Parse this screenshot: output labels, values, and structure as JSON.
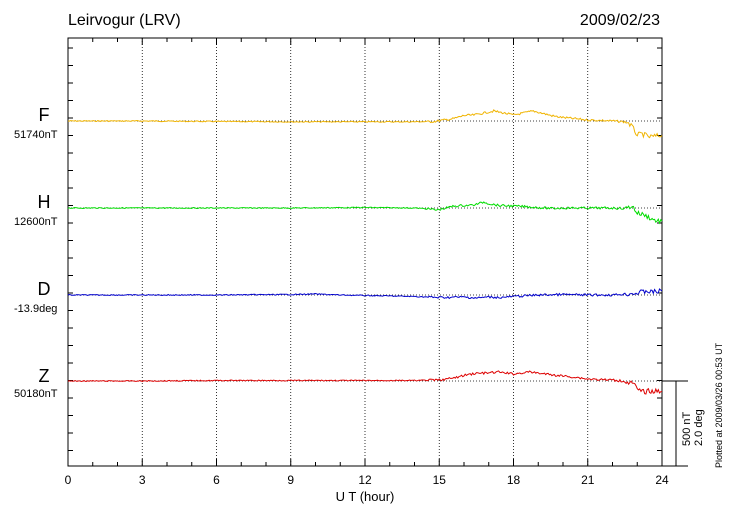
{
  "header": {
    "station": "Leirvogur (LRV)",
    "date": "2009/02/23"
  },
  "footer": {
    "plotted_at": "Plotted at 2009/03/26 00:53 UT"
  },
  "scale_bar": {
    "nt_label": "500 nT",
    "deg_label": "2.0 deg"
  },
  "chart_data": {
    "type": "line",
    "xlabel": "U T (hour)",
    "xlim": [
      0,
      24
    ],
    "xticks": [
      "0",
      "3",
      "6",
      "9",
      "12",
      "15",
      "18",
      "21",
      "24"
    ],
    "grid": true,
    "series": [
      {
        "name": "F",
        "baseline_label": "51740nT",
        "color": "#f0b400",
        "points": [
          [
            0,
            0
          ],
          [
            3,
            0
          ],
          [
            6,
            -5
          ],
          [
            9,
            -8
          ],
          [
            12,
            -8
          ],
          [
            14,
            -8
          ],
          [
            14.8,
            -5
          ],
          [
            15.2,
            10
          ],
          [
            15.6,
            25
          ],
          [
            16,
            55
          ],
          [
            16.4,
            60
          ],
          [
            16.8,
            80
          ],
          [
            17.2,
            100
          ],
          [
            17.6,
            80
          ],
          [
            18,
            60
          ],
          [
            18.4,
            80
          ],
          [
            18.8,
            100
          ],
          [
            19.2,
            75
          ],
          [
            19.6,
            50
          ],
          [
            20,
            35
          ],
          [
            20.4,
            25
          ],
          [
            21,
            10
          ],
          [
            21.6,
            5
          ],
          [
            22,
            0
          ],
          [
            22.6,
            -10
          ],
          [
            22.8,
            -60
          ],
          [
            23,
            -140
          ],
          [
            23.2,
            -130
          ],
          [
            23.5,
            -160
          ],
          [
            23.8,
            -150
          ],
          [
            24,
            -145
          ]
        ]
      },
      {
        "name": "H",
        "baseline_label": "12600nT",
        "color": "#00dd00",
        "points": [
          [
            0,
            0
          ],
          [
            3,
            0
          ],
          [
            6,
            0
          ],
          [
            9,
            0
          ],
          [
            12,
            5
          ],
          [
            14,
            0
          ],
          [
            14.6,
            -10
          ],
          [
            14.9,
            -20
          ],
          [
            15.2,
            -5
          ],
          [
            15.6,
            20
          ],
          [
            16,
            25
          ],
          [
            16.4,
            30
          ],
          [
            16.8,
            60
          ],
          [
            17,
            45
          ],
          [
            17.4,
            25
          ],
          [
            18,
            20
          ],
          [
            18.4,
            15
          ],
          [
            19,
            5
          ],
          [
            19.6,
            -5
          ],
          [
            20,
            0
          ],
          [
            21,
            0
          ],
          [
            22,
            0
          ],
          [
            22.5,
            -5
          ],
          [
            22.8,
            20
          ],
          [
            23,
            -50
          ],
          [
            23.3,
            -70
          ],
          [
            23.6,
            -110
          ],
          [
            23.8,
            -130
          ],
          [
            24,
            -130
          ]
        ]
      },
      {
        "name": "D",
        "baseline_label": "-13.9deg",
        "color": "#0000cc",
        "points": [
          [
            0,
            0
          ],
          [
            3,
            0
          ],
          [
            6,
            0
          ],
          [
            9,
            5
          ],
          [
            10,
            10
          ],
          [
            11,
            0
          ],
          [
            12,
            -5
          ],
          [
            13,
            -10
          ],
          [
            14,
            -15
          ],
          [
            15,
            -25
          ],
          [
            16,
            -20
          ],
          [
            16.5,
            -30
          ],
          [
            17,
            -20
          ],
          [
            17.5,
            -25
          ],
          [
            18,
            -15
          ],
          [
            19,
            0
          ],
          [
            20,
            5
          ],
          [
            21,
            0
          ],
          [
            22,
            0
          ],
          [
            22.5,
            10
          ],
          [
            23,
            20
          ],
          [
            23.4,
            40
          ],
          [
            23.6,
            30
          ],
          [
            24,
            40
          ]
        ]
      },
      {
        "name": "Z",
        "baseline_label": "50180nT",
        "color": "#dd0000",
        "points": [
          [
            0,
            0
          ],
          [
            3,
            0
          ],
          [
            6,
            5
          ],
          [
            9,
            5
          ],
          [
            12,
            5
          ],
          [
            14,
            5
          ],
          [
            15,
            10
          ],
          [
            15.6,
            30
          ],
          [
            16,
            55
          ],
          [
            16.4,
            75
          ],
          [
            17,
            80
          ],
          [
            17.4,
            90
          ],
          [
            18,
            70
          ],
          [
            18.6,
            90
          ],
          [
            19,
            80
          ],
          [
            19.6,
            60
          ],
          [
            20,
            50
          ],
          [
            20.6,
            35
          ],
          [
            21,
            20
          ],
          [
            22,
            10
          ],
          [
            22.4,
            0
          ],
          [
            22.8,
            -20
          ],
          [
            23,
            -80
          ],
          [
            23.2,
            -110
          ],
          [
            23.5,
            -100
          ],
          [
            24,
            -105
          ]
        ]
      }
    ]
  }
}
